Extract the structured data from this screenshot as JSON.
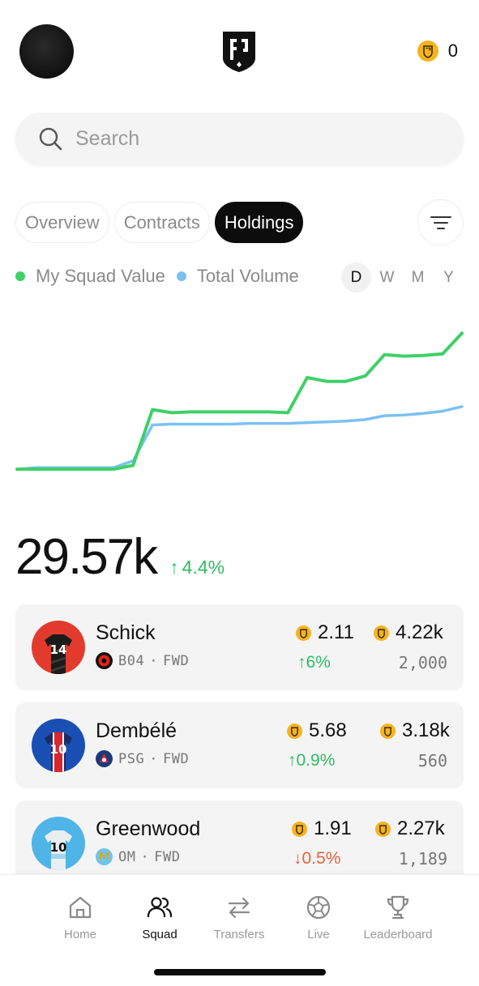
{
  "header": {
    "balance": "0"
  },
  "search": {
    "placeholder": "Search",
    "value": ""
  },
  "tabs": [
    {
      "label": "Overview",
      "active": false
    },
    {
      "label": "Contracts",
      "active": false
    },
    {
      "label": "Holdings",
      "active": true
    }
  ],
  "legend": {
    "series_1": "My Squad Value",
    "series_2": "Total Volume"
  },
  "ranges": [
    {
      "label": "D",
      "active": true
    },
    {
      "label": "W",
      "active": false
    },
    {
      "label": "M",
      "active": false
    },
    {
      "label": "Y",
      "active": false
    }
  ],
  "colors": {
    "squad_value": "#3fd068",
    "total_volume": "#7cc1f2",
    "coin": "#f5b41e",
    "up": "#2dbd63",
    "down": "#e8603c"
  },
  "chart_data": {
    "type": "line",
    "x": [
      0,
      1,
      2,
      3,
      4,
      5,
      6,
      7,
      8,
      9,
      10,
      11,
      12,
      13,
      14,
      15,
      16,
      17,
      18,
      19,
      20,
      21,
      22,
      23
    ],
    "series": [
      {
        "name": "My Squad Value",
        "values": [
          2.0,
          2.0,
          2.0,
          2.0,
          2.0,
          2.0,
          2.5,
          9.8,
          9.4,
          9.5,
          9.5,
          9.5,
          9.5,
          9.5,
          9.4,
          14.0,
          13.5,
          13.5,
          14.2,
          17.0,
          16.8,
          16.9,
          17.1,
          19.8
        ]
      },
      {
        "name": "Total Volume",
        "values": [
          2.0,
          2.2,
          2.2,
          2.2,
          2.2,
          2.2,
          3.1,
          7.8,
          7.9,
          7.9,
          7.9,
          7.9,
          8.0,
          8.0,
          8.0,
          8.1,
          8.2,
          8.3,
          8.5,
          9.0,
          9.1,
          9.3,
          9.6,
          10.2
        ]
      }
    ],
    "ylim": [
      0,
      21
    ],
    "grid": false,
    "legend": "top-left"
  },
  "summary": {
    "total": "29.57k",
    "change": "4.4%",
    "direction": "up"
  },
  "holdings": [
    {
      "name": "Schick",
      "club": "B04",
      "position": "FWD",
      "price": "2.11",
      "change": "6%",
      "direction": "up",
      "value": "4.22k",
      "quantity": "2,000",
      "shirt_number": "14"
    },
    {
      "name": "Dembélé",
      "club": "PSG",
      "position": "FWD",
      "price": "5.68",
      "change": "0.9%",
      "direction": "up",
      "value": "3.18k",
      "quantity": "560",
      "shirt_number": "10"
    },
    {
      "name": "Greenwood",
      "club": "OM",
      "position": "FWD",
      "price": "1.91",
      "change": "0.5%",
      "direction": "down",
      "value": "2.27k",
      "quantity": "1,189",
      "shirt_number": "10"
    }
  ],
  "nav": [
    {
      "label": "Home",
      "icon": "home-icon",
      "active": false
    },
    {
      "label": "Squad",
      "icon": "squad-icon",
      "active": true
    },
    {
      "label": "Transfers",
      "icon": "transfers-icon",
      "active": false
    },
    {
      "label": "Live",
      "icon": "ball-icon",
      "active": false
    },
    {
      "label": "Leaderboard",
      "icon": "trophy-icon",
      "active": false
    }
  ]
}
